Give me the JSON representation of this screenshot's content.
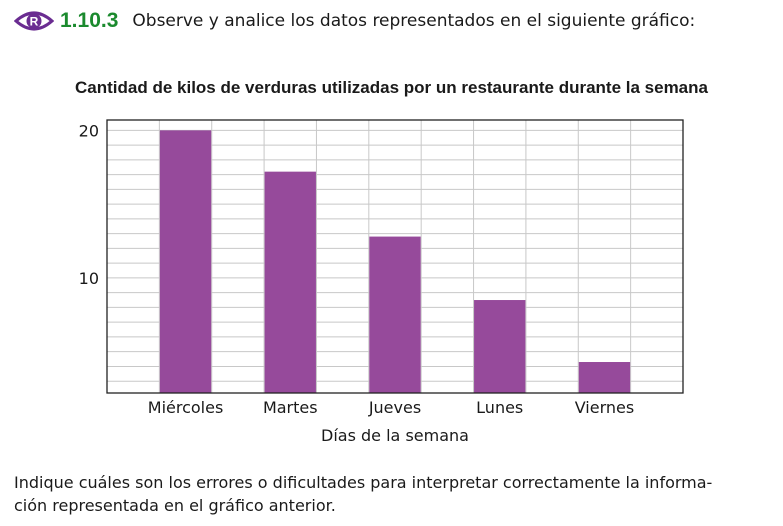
{
  "exercise": {
    "icon": "eye-r-icon",
    "number": "1.10.3",
    "instruction": "Observe y analice los datos representados en el siguiente gráfico:"
  },
  "colors": {
    "bar": "#964a9b",
    "accent": "#1b8a2e",
    "icon": "#6a2c91"
  },
  "chart_data": {
    "type": "bar",
    "title": "Cantidad de kilos de verduras utilizadas por un restaurante durante la semana",
    "xlabel": "Días de la semana",
    "ylabel": "",
    "categories": [
      "Miércoles",
      "Martes",
      "Jueves",
      "Lunes",
      "Viernes"
    ],
    "values": [
      20,
      17.2,
      12.8,
      8.5,
      4.3
    ],
    "yticks": [
      10,
      20
    ],
    "ylim": [
      2.2,
      20.7
    ],
    "grid": true,
    "legend": "none"
  },
  "question": {
    "line1": "Indique cuáles son los errores o dificultades para interpretar correctamente la informa-",
    "line2": "ción representada en el gráfico anterior."
  }
}
